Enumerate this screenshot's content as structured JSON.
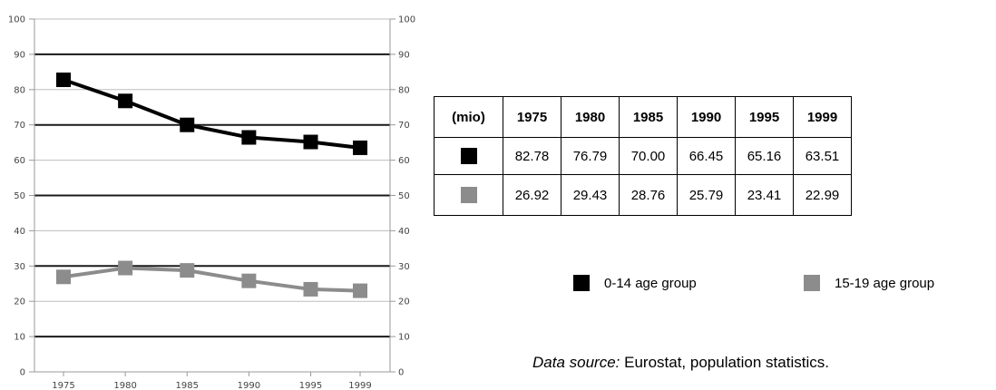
{
  "chart_data": {
    "type": "line",
    "x": [
      1975,
      1980,
      1985,
      1990,
      1995,
      1999
    ],
    "series": [
      {
        "name": "0-14 age group",
        "color": "#000000",
        "values": [
          82.78,
          76.79,
          70.0,
          66.45,
          65.16,
          63.51
        ]
      },
      {
        "name": "15-19 age group",
        "color": "#8c8c8c",
        "values": [
          26.92,
          29.43,
          28.76,
          25.79,
          23.41,
          22.99
        ]
      }
    ],
    "ylim": [
      0,
      100
    ],
    "yticks": [
      "0",
      "10",
      "20",
      "30",
      "40",
      "50",
      "60",
      "70",
      "80",
      "90",
      "100"
    ],
    "xticks": [
      "1975",
      "1980",
      "1985",
      "1990",
      "1995",
      "1999"
    ],
    "grid": true
  },
  "table": {
    "unit_label": "(mio)",
    "years": [
      "1975",
      "1980",
      "1985",
      "1990",
      "1995",
      "1999"
    ],
    "rows": [
      {
        "color": "#000000",
        "values": [
          "82.78",
          "76.79",
          "70.00",
          "66.45",
          "65.16",
          "63.51"
        ]
      },
      {
        "color": "#8c8c8c",
        "values": [
          "26.92",
          "29.43",
          "28.76",
          "25.79",
          "23.41",
          "22.99"
        ]
      }
    ]
  },
  "legend": {
    "items": [
      {
        "label": "0-14 age group",
        "color": "#000000"
      },
      {
        "label": "15-19 age group",
        "color": "#8c8c8c"
      }
    ]
  },
  "source": {
    "prefix": "Data source:",
    "text": " Eurostat, population statistics."
  }
}
